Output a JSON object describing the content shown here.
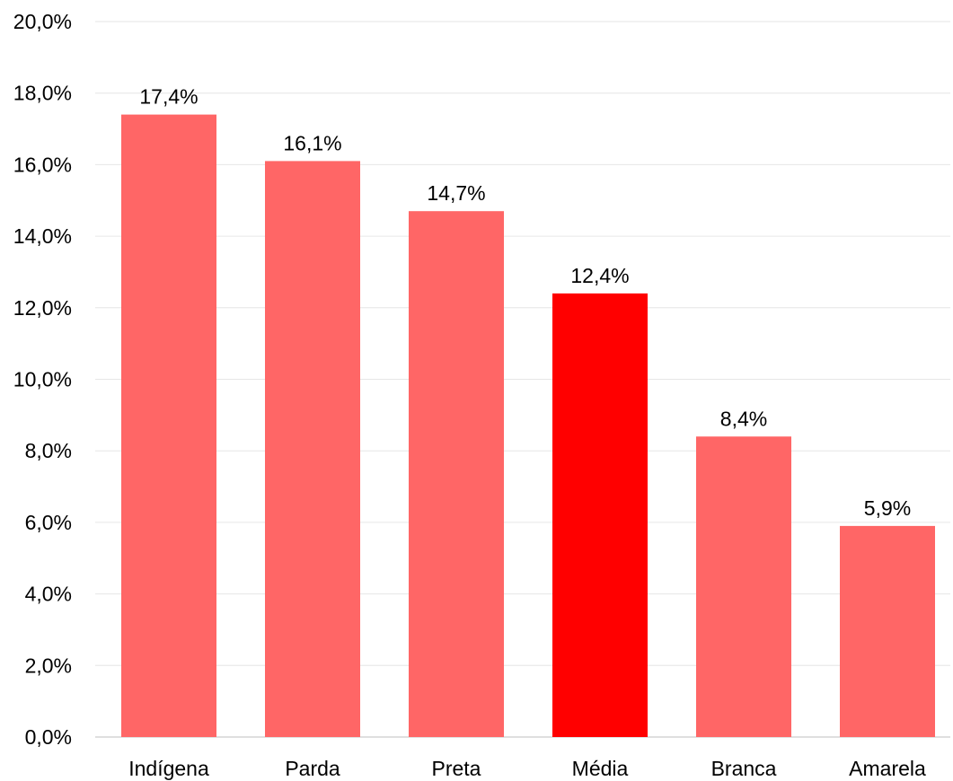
{
  "chart_data": {
    "type": "bar",
    "title": "",
    "xlabel": "",
    "ylabel": "",
    "categories": [
      "Indígena",
      "Parda",
      "Preta",
      "Média",
      "Branca",
      "Amarela"
    ],
    "values": [
      17.4,
      16.1,
      14.7,
      12.4,
      8.4,
      5.9
    ],
    "data_labels": [
      "17,4%",
      "16,1%",
      "14,7%",
      "12,4%",
      "8,4%",
      "5,9%"
    ],
    "ylim": [
      0,
      20
    ],
    "yticks": [
      0,
      2,
      4,
      6,
      8,
      10,
      12,
      14,
      16,
      18,
      20
    ],
    "ytick_labels": [
      "0,0%",
      "2,0%",
      "4,0%",
      "6,0%",
      "8,0%",
      "10,0%",
      "12,0%",
      "14,0%",
      "16,0%",
      "18,0%",
      "20,0%"
    ],
    "grid": true,
    "legend": "none",
    "colors": {
      "bar": "#ff6666",
      "highlight": "#ff0000",
      "highlight_category": "Média"
    }
  }
}
